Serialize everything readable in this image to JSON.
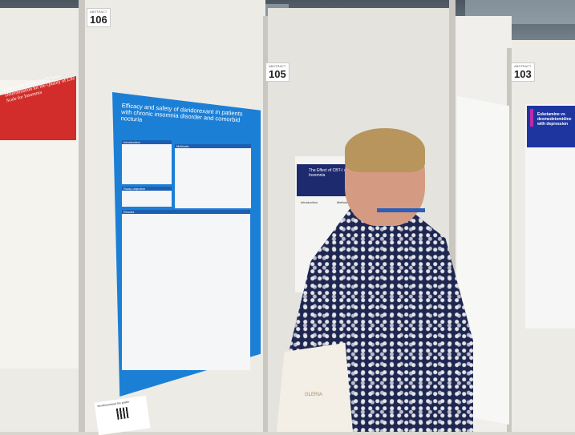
{
  "scene": "poster session",
  "boards": [
    {
      "label": "ABSTRACT",
      "number": "106"
    },
    {
      "label": "ABSTRACT",
      "number": "105"
    },
    {
      "label": "ABSTRACT",
      "number": "103"
    }
  ],
  "posters": {
    "main": {
      "title": "Efficacy and safety of daridorexant in patients with chronic insomnia disorder and comorbid nocturia",
      "sections": [
        "Introduction",
        "Methods",
        "Study objective",
        "Results"
      ],
      "color": "#1c7fd6"
    },
    "left": {
      "title": "Evaluation of the Cutoff Score Determination for the Quality of Life Scale for Insomnia",
      "color": "#d22d2a"
    },
    "middle": {
      "title": "The Effect of CBT-I on Patients with Insomnia",
      "sections": [
        "Introduction",
        "Methods"
      ],
      "color": "#1e2a6e"
    },
    "right": {
      "title": "Esketamine vs dexmedetomidine with depression",
      "color": "#1e35a0"
    }
  },
  "qr_card": {
    "text": "View/Download the poster"
  },
  "bag": {
    "logo": "GLERIA"
  }
}
